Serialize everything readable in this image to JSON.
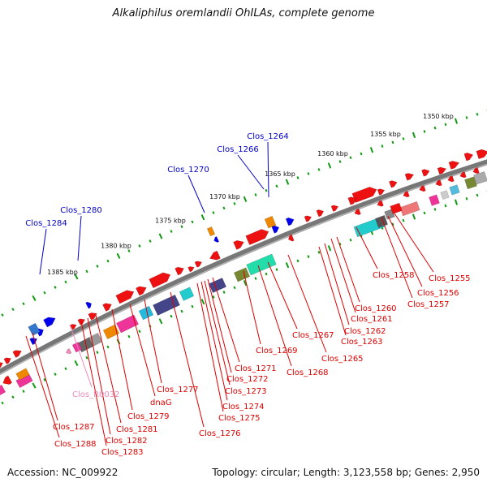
{
  "title": "Alkaliphilus oremlandii OhILAs, complete genome",
  "accession": "Accession: NC_009922",
  "summary": "Topology: circular; Length: 3,123,558 bp; Genes: 2,950",
  "colors": {
    "backbone": "#777777",
    "forward_label": "#0000cc",
    "reverse_label": "#dd0000",
    "rna_label": "#f08ab8",
    "tick_major": "#119911",
    "tick_minor": "#119911"
  },
  "scale_labels": [
    {
      "kbp": 1350,
      "text": "1350 kbp"
    },
    {
      "kbp": 1355,
      "text": "1355 kbp"
    },
    {
      "kbp": 1360,
      "text": "1360 kbp"
    },
    {
      "kbp": 1365,
      "text": "1365 kbp"
    },
    {
      "kbp": 1370,
      "text": "1370 kbp"
    },
    {
      "kbp": 1375,
      "text": "1375 kbp"
    },
    {
      "kbp": 1380,
      "text": "1380 kbp"
    },
    {
      "kbp": 1385,
      "text": "1385 kbp"
    }
  ],
  "forward_gene_labels": [
    "Clos_1264",
    "Clos_1266",
    "Clos_1270",
    "Clos_1280",
    "Clos_1284"
  ],
  "reverse_gene_labels": [
    "Clos_1255",
    "Clos_1256",
    "Clos_1257",
    "Clos_1258",
    "Clos_1260",
    "Clos_1261",
    "Clos_1262",
    "Clos_1263",
    "Clos_1265",
    "Clos_1267",
    "Clos_1268",
    "Clos_1269",
    "Clos_1271",
    "Clos_1272",
    "Clos_1273",
    "Clos_1274",
    "Clos_1275",
    "Clos_1276",
    "Clos_1277",
    "dnaG",
    "Clos_1279",
    "Clos_1281",
    "Clos_1282",
    "Clos_1283",
    "Clos_1287",
    "Clos_1288"
  ],
  "rna_gene_labels": [
    "Clos_R0032"
  ]
}
